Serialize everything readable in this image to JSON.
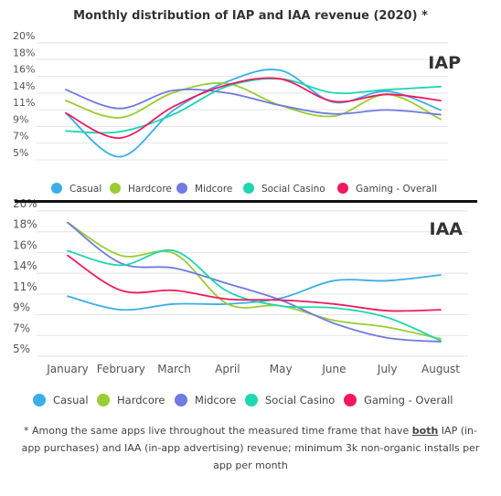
{
  "title": "Monthly distribution of IAP and IAA revenue (2020) *",
  "footnote": {
    "before": "* Among the same apps live throughout the measured time frame that have ",
    "emphasis": "both",
    "after": " IAP (in-app purchases) and IAA (in-app advertising) revenue; minimum 3k non-organic installs per app per month"
  },
  "colors": {
    "Casual": "#3aaee8",
    "Hardcore": "#9acd32",
    "Midcore": "#6f7be0",
    "Social Casino": "#1ed6b2",
    "Gaming - Overall": "#f0195e"
  },
  "chart_data": [
    {
      "type": "line",
      "label": "IAP",
      "x": [
        "January",
        "February",
        "March",
        "April",
        "May",
        "June",
        "July",
        "August"
      ],
      "y_ticks": [
        "20%",
        "18%",
        "16%",
        "14%",
        "11%",
        "9%",
        "7%",
        "5%"
      ],
      "ylim": [
        5,
        20
      ],
      "grid": true,
      "legend": "bottom",
      "series": [
        {
          "name": "Casual",
          "values": [
            11.0,
            5.4,
            11.3,
            15.0,
            16.5,
            12.4,
            13.8,
            11.4
          ]
        },
        {
          "name": "Hardcore",
          "values": [
            12.6,
            10.4,
            13.6,
            14.8,
            12.0,
            10.6,
            13.4,
            10.2
          ]
        },
        {
          "name": "Midcore",
          "values": [
            14.0,
            11.6,
            13.9,
            13.6,
            12.0,
            10.9,
            11.4,
            10.8
          ]
        },
        {
          "name": "Social Casino",
          "values": [
            8.7,
            8.6,
            10.8,
            14.4,
            15.4,
            13.6,
            14.0,
            14.4
          ]
        },
        {
          "name": "Gaming - Overall",
          "values": [
            11.0,
            7.8,
            11.8,
            14.6,
            15.4,
            12.5,
            13.4,
            12.6
          ]
        }
      ]
    },
    {
      "type": "line",
      "label": "IAA",
      "x": [
        "January",
        "February",
        "March",
        "April",
        "May",
        "June",
        "July",
        "August"
      ],
      "y_ticks": [
        "20%",
        "18%",
        "16%",
        "14%",
        "11%",
        "9%",
        "7%",
        "5%"
      ],
      "ylim": [
        5,
        20
      ],
      "grid": true,
      "legend": "bottom",
      "series": [
        {
          "name": "Casual",
          "values": [
            11.2,
            9.8,
            10.4,
            10.4,
            11.0,
            12.8,
            12.8,
            13.4
          ]
        },
        {
          "name": "Hardcore",
          "values": [
            18.8,
            15.4,
            15.6,
            10.4,
            10.2,
            8.7,
            8.0,
            6.8
          ]
        },
        {
          "name": "Midcore",
          "values": [
            18.8,
            14.6,
            14.1,
            12.5,
            10.8,
            8.4,
            6.9,
            6.5
          ]
        },
        {
          "name": "Social Casino",
          "values": [
            15.9,
            14.4,
            15.9,
            11.7,
            10.2,
            10.0,
            9.0,
            6.6
          ]
        },
        {
          "name": "Gaming - Overall",
          "values": [
            15.4,
            11.8,
            11.8,
            10.9,
            10.8,
            10.4,
            9.7,
            9.8
          ]
        }
      ]
    }
  ]
}
